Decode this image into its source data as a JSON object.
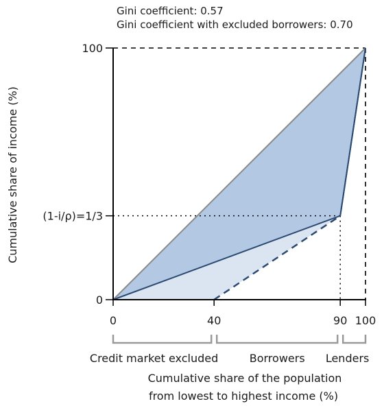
{
  "chart_data": {
    "type": "area",
    "annotations": {
      "gini": "Gini coefficient: 0.57",
      "gini_excluded": "Gini coefficient with excluded borrowers: 0.70"
    },
    "xlabel_line1": "Cumulative share of the population",
    "xlabel_line2": "from lowest to highest income (%)",
    "ylabel": "Cumulative share of income (%)",
    "xlim": [
      0,
      100
    ],
    "ylim": [
      0,
      100
    ],
    "x_ticks": [
      {
        "value": 0,
        "label": "0"
      },
      {
        "value": 40,
        "label": "40"
      },
      {
        "value": 90,
        "label": "90"
      },
      {
        "value": 100,
        "label": "100"
      }
    ],
    "y_ticks": [
      {
        "value": 0,
        "label": "0"
      },
      {
        "value": 33.33,
        "label": "(1-i/ρ)=1/3"
      },
      {
        "value": 100,
        "label": "100"
      }
    ],
    "groups": [
      {
        "label": "Credit market excluded",
        "from": 0,
        "to": 40
      },
      {
        "label": "Borrowers",
        "from": 40,
        "to": 90
      },
      {
        "label": "Lenders",
        "from": 90,
        "to": 100
      }
    ],
    "series": [
      {
        "x": [
          0,
          100
        ],
        "y": [
          0,
          100
        ]
      },
      {
        "x": [
          0,
          90,
          100
        ],
        "y": [
          0,
          33.33,
          100
        ]
      },
      {
        "x": [
          0,
          40,
          90,
          100
        ],
        "y": [
          0,
          0,
          33.33,
          100
        ]
      }
    ],
    "colors": {
      "fill_dark": "#b3c8e2",
      "fill_light": "#dbe5f2",
      "line": "#2b4a72",
      "equality": "#8a8a8a",
      "axis": "#000000"
    }
  }
}
